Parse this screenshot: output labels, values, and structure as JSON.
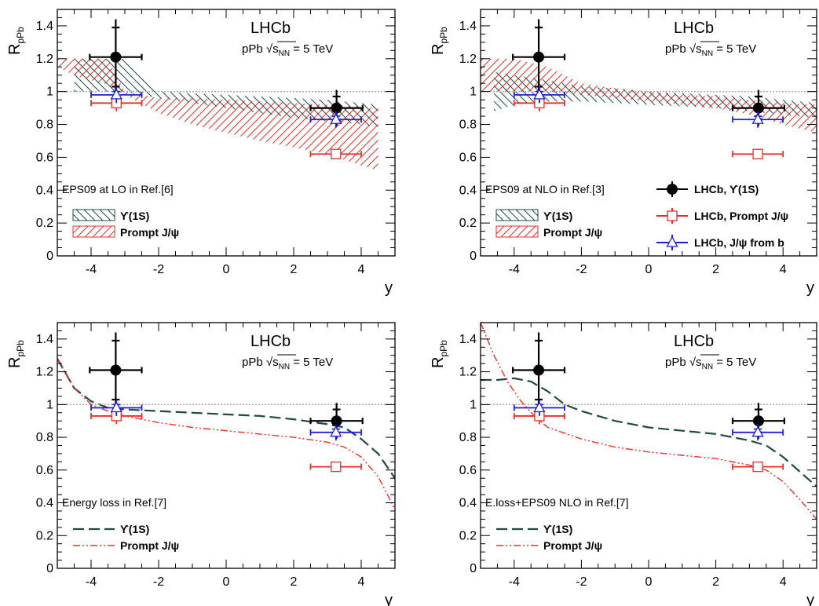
{
  "chart_data": [
    {
      "type": "scatter",
      "experiment": "LHCb",
      "collision": "pPb",
      "energy_symbol": "√s",
      "energy_sub": "NN",
      "energy_value": "= 5 TeV",
      "ylabel": "R",
      "ylabel_sub": "pPb",
      "xlabel": "y",
      "xlim": [
        -5,
        5
      ],
      "ylim": [
        0,
        1.5
      ],
      "xticks": [
        "-4",
        "-2",
        "0",
        "2",
        "4"
      ],
      "yticks": [
        "0",
        "0.2",
        "0.4",
        "0.6",
        "0.8",
        "1",
        "1.2",
        "1.4"
      ],
      "reference_line": 1,
      "model_label": "EPS09 at LO in Ref.[6]",
      "model_style": "band",
      "model_legend": [
        {
          "name": "ϒ(1S)",
          "color": "#1e4a47"
        },
        {
          "name": "Prompt J/ψ",
          "color": "#e8302a"
        }
      ],
      "bands": [
        {
          "name": "ϒ(1S)",
          "color": "#1e4a47",
          "x": [
            -4.5,
            -3,
            -2,
            -1,
            0,
            1,
            2,
            3,
            4,
            4.5
          ],
          "upper": [
            1.2,
            1.2,
            1.0,
            0.99,
            0.98,
            0.97,
            0.96,
            0.95,
            0.93,
            0.92
          ],
          "lower": [
            1.0,
            1.0,
            0.96,
            0.93,
            0.9,
            0.87,
            0.84,
            0.82,
            0.8,
            0.78
          ]
        },
        {
          "name": "Prompt J/ψ",
          "color": "#e8302a",
          "x": [
            -5,
            -4.5,
            -3.5,
            -3,
            -2,
            -1,
            0,
            1,
            2,
            3,
            4,
            4.5
          ],
          "upper": [
            1.2,
            1.2,
            1.2,
            1.0,
            0.96,
            0.96,
            0.95,
            0.94,
            0.93,
            0.92,
            0.91,
            0.9
          ],
          "lower": [
            1.15,
            1.1,
            1.04,
            0.98,
            0.87,
            0.8,
            0.75,
            0.7,
            0.66,
            0.62,
            0.55,
            0.52
          ]
        }
      ],
      "series": [
        {
          "name": "LHCb, ϒ(1S)",
          "marker": "filled-circle",
          "color": "#000000",
          "points": [
            {
              "x": -3.27,
              "y": 1.21,
              "xerr": 0.77,
              "yerr_tot": 0.23,
              "yerr_stat": 0.18
            },
            {
              "x": 3.27,
              "y": 0.9,
              "xerr": 0.77,
              "yerr_tot": 0.11,
              "yerr_stat": 0.07
            }
          ]
        },
        {
          "name": "LHCb, Prompt J/ψ",
          "marker": "open-square",
          "color": "#e8302a",
          "points": [
            {
              "x": -3.25,
              "y": 0.93,
              "xerr": 0.75,
              "yerr_tot": 0.05,
              "yerr_stat": 0.02
            },
            {
              "x": 3.25,
              "y": 0.62,
              "xerr": 0.75,
              "yerr_tot": 0.03,
              "yerr_stat": 0.01
            }
          ]
        },
        {
          "name": "LHCb, J/ψ from b",
          "marker": "open-triangle",
          "color": "#2020d0",
          "points": [
            {
              "x": -3.25,
              "y": 0.98,
              "xerr": 0.75,
              "yerr_tot": 0.05,
              "yerr_stat": 0.02
            },
            {
              "x": 3.25,
              "y": 0.83,
              "xerr": 0.75,
              "yerr_tot": 0.05,
              "yerr_stat": 0.02
            }
          ]
        }
      ]
    },
    {
      "type": "scatter",
      "experiment": "LHCb",
      "collision": "pPb",
      "energy_symbol": "√s",
      "energy_sub": "NN",
      "energy_value": "= 5 TeV",
      "ylabel": "R",
      "ylabel_sub": "pPb",
      "xlabel": "y",
      "xlim": [
        -5,
        5
      ],
      "ylim": [
        0,
        1.5
      ],
      "xticks": [
        "-4",
        "-2",
        "0",
        "2",
        "4"
      ],
      "yticks": [
        "0",
        "0.2",
        "0.4",
        "0.6",
        "0.8",
        "1",
        "1.2",
        "1.4"
      ],
      "reference_line": 1,
      "model_label": "EPS09 at NLO in Ref.[3]",
      "model_style": "band",
      "model_legend": [
        {
          "name": "ϒ(1S)",
          "color": "#1e4a47"
        },
        {
          "name": "Prompt J/ψ",
          "color": "#e8302a"
        }
      ],
      "data_legend": [
        {
          "name": "LHCb, ϒ(1S)",
          "marker": "filled-circle",
          "color": "#000000"
        },
        {
          "name": "LHCb, Prompt J/ψ",
          "marker": "open-square",
          "color": "#e8302a"
        },
        {
          "name": "LHCb, J/ψ from b",
          "marker": "open-triangle",
          "color": "#2020d0"
        }
      ],
      "bands": [
        {
          "name": "ϒ(1S)",
          "color": "#1e4a47",
          "x": [
            -4.6,
            -4,
            -3,
            -2,
            -1,
            0,
            1,
            2,
            3,
            4,
            5
          ],
          "upper": [
            1.12,
            1.1,
            1.07,
            1.03,
            1.02,
            1.0,
            0.99,
            0.98,
            0.97,
            0.95,
            0.93
          ],
          "lower": [
            0.88,
            0.92,
            0.94,
            0.94,
            0.93,
            0.92,
            0.91,
            0.9,
            0.88,
            0.86,
            0.84
          ]
        },
        {
          "name": "Prompt J/ψ",
          "color": "#e8302a",
          "x": [
            -5,
            -4,
            -3,
            -2,
            -1,
            0,
            1,
            2,
            3,
            4,
            5
          ],
          "upper": [
            1.2,
            1.2,
            1.15,
            1.05,
            1.02,
            1.0,
            0.98,
            0.97,
            0.95,
            0.93,
            0.92
          ],
          "lower": [
            1.0,
            1.0,
            1.0,
            0.98,
            0.96,
            0.94,
            0.92,
            0.9,
            0.86,
            0.8,
            0.75
          ]
        }
      ],
      "series": [
        {
          "name": "LHCb, ϒ(1S)",
          "marker": "filled-circle",
          "color": "#000000",
          "points": [
            {
              "x": -3.27,
              "y": 1.21,
              "xerr": 0.77,
              "yerr_tot": 0.23,
              "yerr_stat": 0.18
            },
            {
              "x": 3.27,
              "y": 0.9,
              "xerr": 0.77,
              "yerr_tot": 0.11,
              "yerr_stat": 0.07
            }
          ]
        },
        {
          "name": "LHCb, Prompt J/ψ",
          "marker": "open-square",
          "color": "#e8302a",
          "points": [
            {
              "x": -3.25,
              "y": 0.93,
              "xerr": 0.75,
              "yerr_tot": 0.05,
              "yerr_stat": 0.02
            },
            {
              "x": 3.25,
              "y": 0.62,
              "xerr": 0.75,
              "yerr_tot": 0.03,
              "yerr_stat": 0.01
            }
          ]
        },
        {
          "name": "LHCb, J/ψ from b",
          "marker": "open-triangle",
          "color": "#2020d0",
          "points": [
            {
              "x": -3.25,
              "y": 0.98,
              "xerr": 0.75,
              "yerr_tot": 0.05,
              "yerr_stat": 0.02
            },
            {
              "x": 3.25,
              "y": 0.83,
              "xerr": 0.75,
              "yerr_tot": 0.05,
              "yerr_stat": 0.02
            }
          ]
        }
      ]
    },
    {
      "type": "scatter",
      "experiment": "LHCb",
      "collision": "pPb",
      "energy_symbol": "√s",
      "energy_sub": "NN",
      "energy_value": "= 5 TeV",
      "ylabel": "R",
      "ylabel_sub": "pPb",
      "xlabel": "y",
      "xlim": [
        -5,
        5
      ],
      "ylim": [
        0,
        1.5
      ],
      "xticks": [
        "-4",
        "-2",
        "0",
        "2",
        "4"
      ],
      "yticks": [
        "0",
        "0.2",
        "0.4",
        "0.6",
        "0.8",
        "1",
        "1.2",
        "1.4"
      ],
      "reference_line": 1,
      "model_label": "Energy loss in Ref.[7]",
      "model_style": "curve",
      "model_legend": [
        {
          "name": "ϒ(1S)",
          "color": "#1e4a47"
        },
        {
          "name": "Prompt J/ψ",
          "color": "#e8302a"
        }
      ],
      "curves": [
        {
          "name": "ϒ(1S)",
          "color": "#1e4a47",
          "dash": "long",
          "x": [
            -5,
            -4.5,
            -4,
            -3.5,
            -3,
            -2,
            -1,
            0,
            1,
            2,
            3,
            3.5,
            4,
            4.5,
            5
          ],
          "y": [
            1.28,
            1.1,
            1.02,
            0.98,
            0.97,
            0.96,
            0.95,
            0.94,
            0.93,
            0.91,
            0.88,
            0.86,
            0.79,
            0.7,
            0.55
          ]
        },
        {
          "name": "Prompt J/ψ",
          "color": "#e8302a",
          "dash": "dashdot",
          "x": [
            -5,
            -4.5,
            -4,
            -3.5,
            -3,
            -2,
            -1,
            0,
            1,
            2,
            3,
            3.5,
            4,
            4.5,
            5
          ],
          "y": [
            1.28,
            1.1,
            1.0,
            0.96,
            0.93,
            0.89,
            0.86,
            0.84,
            0.82,
            0.8,
            0.77,
            0.74,
            0.68,
            0.56,
            0.36
          ]
        }
      ],
      "series": [
        {
          "name": "LHCb, ϒ(1S)",
          "marker": "filled-circle",
          "color": "#000000",
          "points": [
            {
              "x": -3.27,
              "y": 1.21,
              "xerr": 0.77,
              "yerr_tot": 0.23,
              "yerr_stat": 0.18
            },
            {
              "x": 3.27,
              "y": 0.9,
              "xerr": 0.77,
              "yerr_tot": 0.11,
              "yerr_stat": 0.07
            }
          ]
        },
        {
          "name": "LHCb, Prompt J/ψ",
          "marker": "open-square",
          "color": "#e8302a",
          "points": [
            {
              "x": -3.25,
              "y": 0.93,
              "xerr": 0.75,
              "yerr_tot": 0.05,
              "yerr_stat": 0.02
            },
            {
              "x": 3.25,
              "y": 0.62,
              "xerr": 0.75,
              "yerr_tot": 0.03,
              "yerr_stat": 0.01
            }
          ]
        },
        {
          "name": "LHCb, J/ψ from b",
          "marker": "open-triangle",
          "color": "#2020d0",
          "points": [
            {
              "x": -3.25,
              "y": 0.98,
              "xerr": 0.75,
              "yerr_tot": 0.05,
              "yerr_stat": 0.02
            },
            {
              "x": 3.25,
              "y": 0.83,
              "xerr": 0.75,
              "yerr_tot": 0.05,
              "yerr_stat": 0.02
            }
          ]
        }
      ]
    },
    {
      "type": "scatter",
      "experiment": "LHCb",
      "collision": "pPb",
      "energy_symbol": "√s",
      "energy_sub": "NN",
      "energy_value": "= 5 TeV",
      "ylabel": "R",
      "ylabel_sub": "pPb",
      "xlabel": "y",
      "xlim": [
        -5,
        5
      ],
      "ylim": [
        0,
        1.5
      ],
      "xticks": [
        "-4",
        "-2",
        "0",
        "2",
        "4"
      ],
      "yticks": [
        "0",
        "0.2",
        "0.4",
        "0.6",
        "0.8",
        "1",
        "1.2",
        "1.4"
      ],
      "reference_line": 1,
      "model_label": "E.loss+EPS09 NLO in Ref.[7]",
      "model_style": "curve",
      "model_legend": [
        {
          "name": "ϒ(1S)",
          "color": "#1e4a47"
        },
        {
          "name": "Prompt J/ψ",
          "color": "#e8302a"
        }
      ],
      "curves": [
        {
          "name": "ϒ(1S)",
          "color": "#1e4a47",
          "dash": "long",
          "x": [
            -5,
            -4.5,
            -4,
            -3.5,
            -3,
            -2.5,
            -2,
            -1,
            0,
            1,
            2,
            3,
            3.5,
            4,
            4.5,
            5
          ],
          "y": [
            1.15,
            1.15,
            1.16,
            1.14,
            1.08,
            1.0,
            0.96,
            0.9,
            0.86,
            0.84,
            0.82,
            0.78,
            0.75,
            0.68,
            0.59,
            0.5
          ]
        },
        {
          "name": "Prompt J/ψ",
          "color": "#e8302a",
          "dash": "dashdot",
          "x": [
            -5,
            -4.6,
            -4.2,
            -3.8,
            -3.4,
            -3,
            -2,
            -1,
            0,
            1,
            2,
            3,
            3.5,
            4,
            4.5,
            5
          ],
          "y": [
            1.5,
            1.3,
            1.14,
            1.02,
            0.93,
            0.86,
            0.79,
            0.74,
            0.71,
            0.69,
            0.67,
            0.63,
            0.6,
            0.53,
            0.42,
            0.3
          ]
        }
      ],
      "series": [
        {
          "name": "LHCb, ϒ(1S)",
          "marker": "filled-circle",
          "color": "#000000",
          "points": [
            {
              "x": -3.27,
              "y": 1.21,
              "xerr": 0.77,
              "yerr_tot": 0.23,
              "yerr_stat": 0.18
            },
            {
              "x": 3.27,
              "y": 0.9,
              "xerr": 0.77,
              "yerr_tot": 0.11,
              "yerr_stat": 0.07
            }
          ]
        },
        {
          "name": "LHCb, Prompt J/ψ",
          "marker": "open-square",
          "color": "#e8302a",
          "points": [
            {
              "x": -3.25,
              "y": 0.93,
              "xerr": 0.75,
              "yerr_tot": 0.05,
              "yerr_stat": 0.02
            },
            {
              "x": 3.25,
              "y": 0.62,
              "xerr": 0.75,
              "yerr_tot": 0.03,
              "yerr_stat": 0.01
            }
          ]
        },
        {
          "name": "LHCb, J/ψ from b",
          "marker": "open-triangle",
          "color": "#2020d0",
          "points": [
            {
              "x": -3.25,
              "y": 0.98,
              "xerr": 0.75,
              "yerr_tot": 0.05,
              "yerr_stat": 0.02
            },
            {
              "x": 3.25,
              "y": 0.83,
              "xerr": 0.75,
              "yerr_tot": 0.05,
              "yerr_stat": 0.02
            }
          ]
        }
      ]
    }
  ]
}
